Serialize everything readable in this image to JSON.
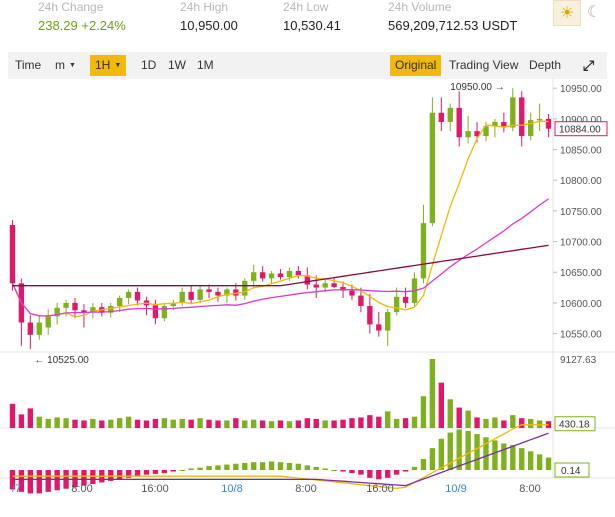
{
  "stats": [
    {
      "label": "24h Change",
      "value": "238.29  +2.24%",
      "positive": true
    },
    {
      "label": "24h High",
      "value": "10,950.00",
      "positive": false
    },
    {
      "label": "24h Low",
      "value": "10,530.41",
      "positive": false
    },
    {
      "label": "24h Volume",
      "value": "569,209,712.53 USDT",
      "positive": false
    }
  ],
  "theme": {
    "light_icon": "sun-icon",
    "dark_icon": "moon-icon"
  },
  "toolbar": {
    "time_label": "Time",
    "minute_label": "m",
    "hour_label": "1H",
    "day_label": "1D",
    "week_label": "1W",
    "month_label": "1M",
    "original_label": "Original",
    "trading_view_label": "Trading View",
    "depth_label": "Depth"
  },
  "colors": {
    "up": "#7fb01e",
    "down": "#e0186c",
    "ma7": "#f0b90b",
    "ma25": "#d63cc8",
    "ma99": "#8b0c40",
    "dif": "#f0b90b",
    "dea": "#7d2a9e",
    "axis_text": "#555555",
    "date_text": "#2b8ad6"
  },
  "chart_data": {
    "type": "candlestick",
    "price_axis_labels": [
      "10950.00",
      "10900.00",
      "10850.00",
      "10800.00",
      "10750.00",
      "10700.00",
      "10650.00",
      "10600.00",
      "10550.00"
    ],
    "last_price": "10884.00",
    "high_marker": "10950.00",
    "low_marker": "10525.00",
    "volume_axis_labels": [
      "9127.63",
      "430.18"
    ],
    "macd_axis_label": "0.14",
    "time_labels": [
      "/7",
      "8:00",
      "16:00",
      "10/8",
      "8:00",
      "16:00",
      "10/9",
      "8:00"
    ],
    "candles": [
      {
        "o": 10727,
        "h": 10735,
        "l": 10620,
        "c": 10632
      },
      {
        "o": 10632,
        "h": 10640,
        "l": 10530,
        "c": 10568
      },
      {
        "o": 10568,
        "h": 10580,
        "l": 10525,
        "c": 10548
      },
      {
        "o": 10548,
        "h": 10580,
        "l": 10540,
        "c": 10568
      },
      {
        "o": 10560,
        "h": 10590,
        "l": 10548,
        "c": 10578
      },
      {
        "o": 10578,
        "h": 10600,
        "l": 10565,
        "c": 10592
      },
      {
        "o": 10592,
        "h": 10605,
        "l": 10578,
        "c": 10600
      },
      {
        "o": 10600,
        "h": 10608,
        "l": 10575,
        "c": 10588
      },
      {
        "o": 10588,
        "h": 10598,
        "l": 10560,
        "c": 10585
      },
      {
        "o": 10585,
        "h": 10600,
        "l": 10575,
        "c": 10593
      },
      {
        "o": 10593,
        "h": 10600,
        "l": 10578,
        "c": 10584
      },
      {
        "o": 10584,
        "h": 10600,
        "l": 10576,
        "c": 10595
      },
      {
        "o": 10595,
        "h": 10612,
        "l": 10585,
        "c": 10608
      },
      {
        "o": 10608,
        "h": 10622,
        "l": 10598,
        "c": 10618
      },
      {
        "o": 10618,
        "h": 10625,
        "l": 10596,
        "c": 10604
      },
      {
        "o": 10604,
        "h": 10610,
        "l": 10580,
        "c": 10596
      },
      {
        "o": 10596,
        "h": 10605,
        "l": 10565,
        "c": 10575
      },
      {
        "o": 10575,
        "h": 10600,
        "l": 10570,
        "c": 10595
      },
      {
        "o": 10595,
        "h": 10605,
        "l": 10588,
        "c": 10600
      },
      {
        "o": 10600,
        "h": 10625,
        "l": 10595,
        "c": 10618
      },
      {
        "o": 10618,
        "h": 10628,
        "l": 10598,
        "c": 10605
      },
      {
        "o": 10605,
        "h": 10628,
        "l": 10600,
        "c": 10622
      },
      {
        "o": 10622,
        "h": 10630,
        "l": 10608,
        "c": 10618
      },
      {
        "o": 10618,
        "h": 10625,
        "l": 10602,
        "c": 10612
      },
      {
        "o": 10612,
        "h": 10625,
        "l": 10600,
        "c": 10622
      },
      {
        "o": 10622,
        "h": 10632,
        "l": 10604,
        "c": 10612
      },
      {
        "o": 10612,
        "h": 10640,
        "l": 10605,
        "c": 10636
      },
      {
        "o": 10636,
        "h": 10662,
        "l": 10625,
        "c": 10650
      },
      {
        "o": 10650,
        "h": 10660,
        "l": 10635,
        "c": 10640
      },
      {
        "o": 10640,
        "h": 10652,
        "l": 10632,
        "c": 10648
      },
      {
        "o": 10648,
        "h": 10655,
        "l": 10638,
        "c": 10642
      },
      {
        "o": 10642,
        "h": 10658,
        "l": 10636,
        "c": 10652
      },
      {
        "o": 10652,
        "h": 10660,
        "l": 10640,
        "c": 10645
      },
      {
        "o": 10645,
        "h": 10658,
        "l": 10622,
        "c": 10630
      },
      {
        "o": 10630,
        "h": 10645,
        "l": 10608,
        "c": 10625
      },
      {
        "o": 10625,
        "h": 10640,
        "l": 10618,
        "c": 10632
      },
      {
        "o": 10632,
        "h": 10642,
        "l": 10624,
        "c": 10626
      },
      {
        "o": 10626,
        "h": 10635,
        "l": 10608,
        "c": 10620
      },
      {
        "o": 10620,
        "h": 10630,
        "l": 10605,
        "c": 10612
      },
      {
        "o": 10612,
        "h": 10625,
        "l": 10585,
        "c": 10595
      },
      {
        "o": 10595,
        "h": 10615,
        "l": 10550,
        "c": 10565
      },
      {
        "o": 10565,
        "h": 10585,
        "l": 10545,
        "c": 10555
      },
      {
        "o": 10555,
        "h": 10590,
        "l": 10530,
        "c": 10585
      },
      {
        "o": 10585,
        "h": 10625,
        "l": 10580,
        "c": 10610
      },
      {
        "o": 10610,
        "h": 10625,
        "l": 10592,
        "c": 10600
      },
      {
        "o": 10600,
        "h": 10650,
        "l": 10595,
        "c": 10640
      },
      {
        "o": 10640,
        "h": 10760,
        "l": 10632,
        "c": 10730
      },
      {
        "o": 10730,
        "h": 10935,
        "l": 10725,
        "c": 10910
      },
      {
        "o": 10910,
        "h": 10935,
        "l": 10880,
        "c": 10895
      },
      {
        "o": 10895,
        "h": 10925,
        "l": 10880,
        "c": 10918
      },
      {
        "o": 10918,
        "h": 10945,
        "l": 10855,
        "c": 10870
      },
      {
        "o": 10870,
        "h": 10905,
        "l": 10860,
        "c": 10880
      },
      {
        "o": 10880,
        "h": 10895,
        "l": 10862,
        "c": 10872
      },
      {
        "o": 10872,
        "h": 10895,
        "l": 10864,
        "c": 10888
      },
      {
        "o": 10888,
        "h": 10900,
        "l": 10870,
        "c": 10895
      },
      {
        "o": 10895,
        "h": 10910,
        "l": 10878,
        "c": 10886
      },
      {
        "o": 10886,
        "h": 10950,
        "l": 10880,
        "c": 10935
      },
      {
        "o": 10935,
        "h": 10945,
        "l": 10855,
        "c": 10872
      },
      {
        "o": 10872,
        "h": 10910,
        "l": 10865,
        "c": 10898
      },
      {
        "o": 10898,
        "h": 10925,
        "l": 10880,
        "c": 10900
      },
      {
        "o": 10900,
        "h": 10908,
        "l": 10870,
        "c": 10884
      }
    ],
    "volumes": [
      3200,
      1800,
      2600,
      1500,
      1200,
      1400,
      1300,
      1100,
      1000,
      1200,
      1000,
      1100,
      1300,
      1500,
      1100,
      1000,
      1200,
      1300,
      1100,
      1200,
      1100,
      1300,
      1100,
      1000,
      1000,
      1300,
      1000,
      1100,
      1000,
      900,
      1000,
      900,
      1000,
      1300,
      1200,
      1000,
      1000,
      1100,
      1300,
      1400,
      1700,
      1500,
      2200,
      1200,
      1300,
      1500,
      4200,
      9127,
      6000,
      3800,
      2700,
      2300,
      1400,
      1200,
      1400,
      1000,
      1700,
      1300,
      1200,
      1000,
      900
    ],
    "macd_hist": [
      -25,
      -28,
      -30,
      -30,
      -28,
      -26,
      -24,
      -22,
      -20,
      -18,
      -16,
      -14,
      -12,
      -10,
      -8,
      -6,
      -5,
      -4,
      -2,
      0,
      2,
      3,
      5,
      6,
      7,
      8,
      9,
      10,
      10,
      11,
      10,
      9,
      8,
      6,
      4,
      2,
      0,
      -2,
      -4,
      -6,
      -10,
      -12,
      -10,
      -6,
      -2,
      4,
      14,
      28,
      40,
      48,
      52,
      50,
      46,
      42,
      38,
      34,
      32,
      28,
      24,
      20,
      16
    ]
  }
}
